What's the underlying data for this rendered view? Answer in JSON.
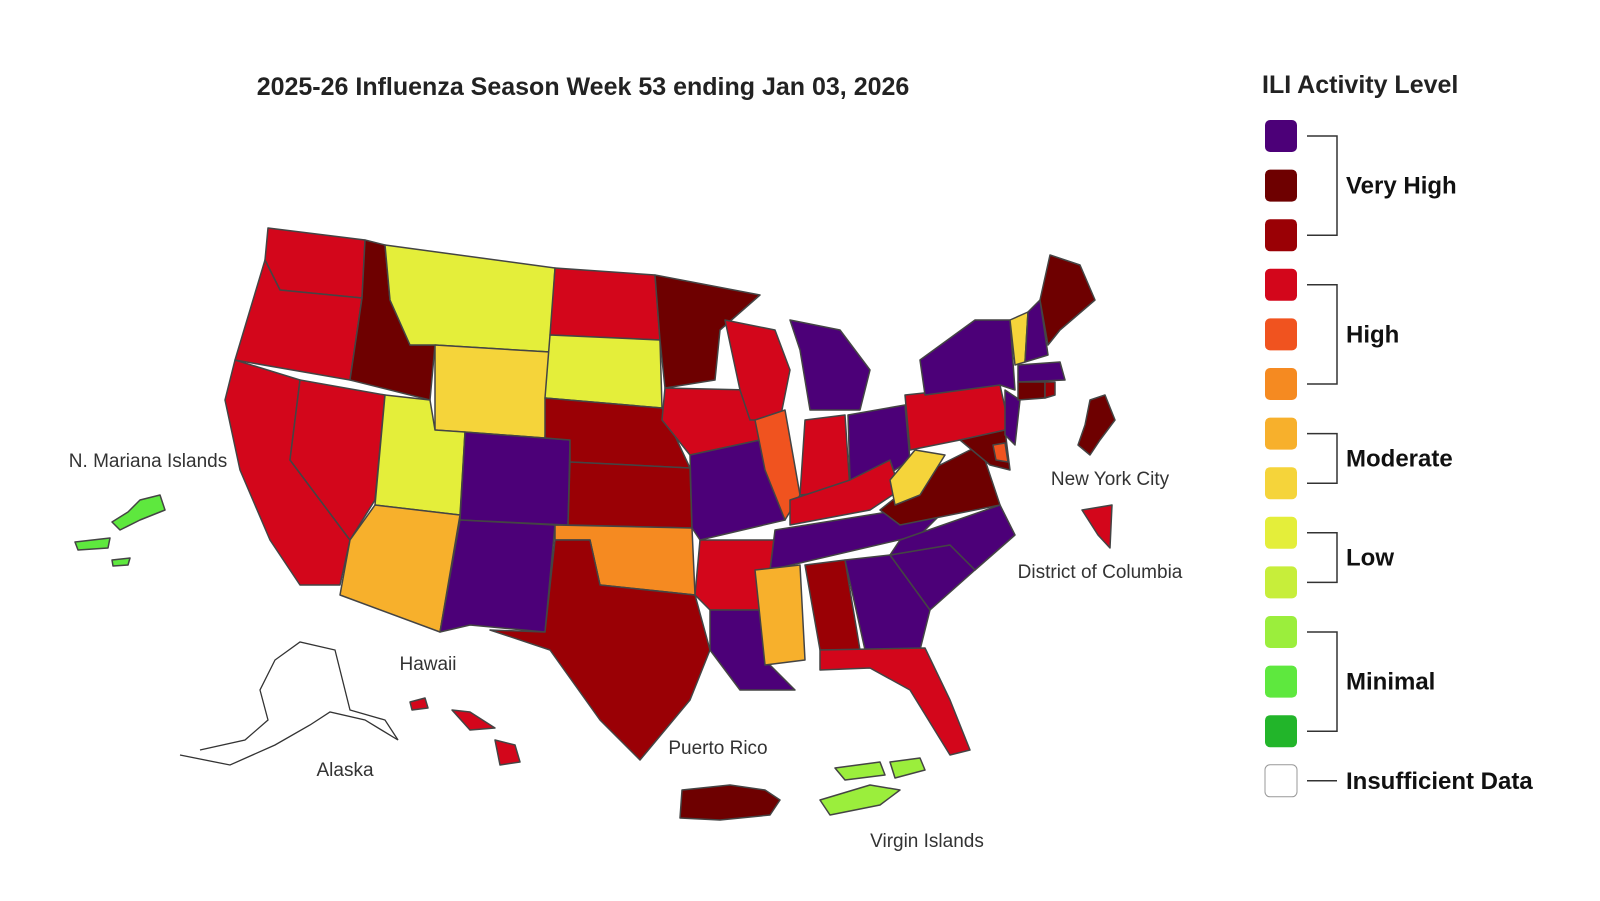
{
  "title": "2025-26 Influenza Season Week 53 ending Jan 03, 2026",
  "legend": {
    "title": "ILI Activity Level",
    "swatches": [
      "#4c0078",
      "#6e0000",
      "#9a0005",
      "#d3061b",
      "#f0531f",
      "#f58a21",
      "#f7b02c",
      "#f5d43a",
      "#e4ee3a",
      "#c7ee3a",
      "#9bee3c",
      "#5ee83e",
      "#22b52a",
      "#ffffff"
    ],
    "groups": [
      "Very High",
      "High",
      "Moderate",
      "Low",
      "Minimal"
    ],
    "insufficient": "Insufficient Data"
  },
  "map_labels": {
    "mariana": "N. Mariana Islands",
    "hawaii": "Hawaii",
    "alaska": "Alaska",
    "puerto_rico": "Puerto Rico",
    "virgin_islands": "Virgin Islands",
    "nyc": "New York City",
    "dc": "District of Columbia"
  }
}
